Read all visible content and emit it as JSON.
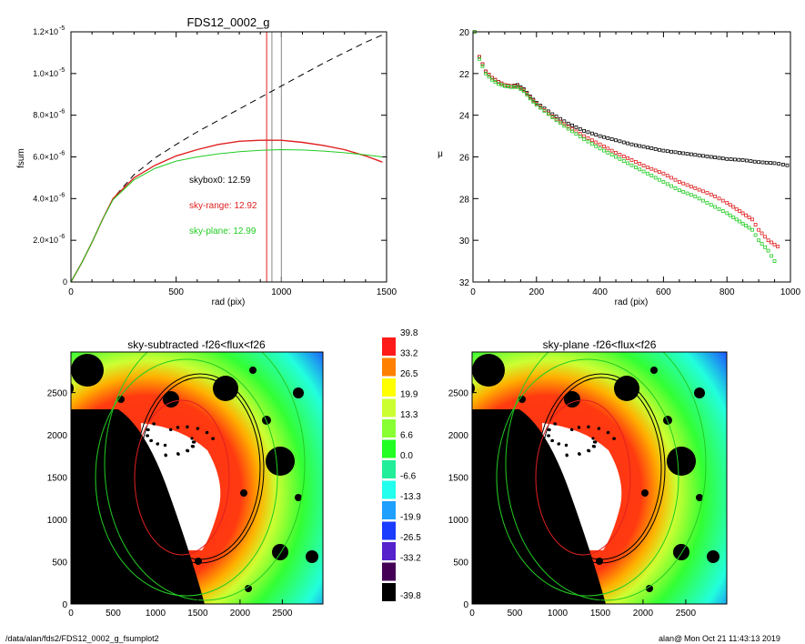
{
  "footer": {
    "path": "/data/alan/fds2/FDS12_0002_g_fsumplot2",
    "user": "alan@",
    "timestamp": "Mon Oct 21 11:43:13 2019"
  },
  "colors": {
    "red": "#e02020",
    "green": "#22cc22",
    "black": "#000000",
    "gray": "#888888"
  },
  "chart_data": [
    {
      "type": "line",
      "title": "FDS12_0002_g",
      "xlabel": "rad (pix)",
      "ylabel": "fsum",
      "xlim": [
        0,
        1500
      ],
      "ylim": [
        0,
        1.2e-05
      ],
      "xticks": [
        0,
        500,
        1000,
        1500
      ],
      "yticks": [
        0,
        2e-06,
        4e-06,
        6e-06,
        8e-06,
        1e-05,
        1.2e-05
      ],
      "ytick_labels": [
        {
          "mant": "0",
          "exp": ""
        },
        {
          "mant": "2.0×10",
          "exp": "-6"
        },
        {
          "mant": "4.0×10",
          "exp": "-6"
        },
        {
          "mant": "6.0×10",
          "exp": "-6"
        },
        {
          "mant": "8.0×10",
          "exp": "-6"
        },
        {
          "mant": "1.0×10",
          "exp": "-5"
        },
        {
          "mant": "1.2×10",
          "exp": "-5"
        }
      ],
      "annotations": [
        {
          "text": "skybox0: 12.59",
          "color": "#000000"
        },
        {
          "text": "sky-range: 12.92",
          "color": "#e02020"
        },
        {
          "text": "sky-plane: 12.99",
          "color": "#22cc22"
        }
      ],
      "vlines": [
        {
          "x": 930,
          "color": "#e02020"
        },
        {
          "x": 955,
          "color": "#888888"
        },
        {
          "x": 1000,
          "color": "#888888"
        }
      ],
      "series": [
        {
          "style": "dashed",
          "color": "#000000",
          "x": [
            0,
            50,
            100,
            150,
            200,
            300,
            400,
            500,
            600,
            700,
            800,
            900,
            1000,
            1100,
            1200,
            1300,
            1400,
            1480
          ],
          "y": [
            0,
            9e-07,
            1.9e-06,
            3e-06,
            4e-06,
            5.15e-06,
            5.95e-06,
            6.6e-06,
            7.2e-06,
            7.75e-06,
            8.3e-06,
            8.85e-06,
            9.4e-06,
            9.95e-06,
            1.05e-05,
            1.1e-05,
            1.15e-05,
            1.185e-05
          ]
        },
        {
          "style": "solid",
          "color": "#e02020",
          "x": [
            0,
            50,
            100,
            150,
            200,
            300,
            400,
            500,
            600,
            700,
            800,
            900,
            1000,
            1100,
            1200,
            1300,
            1400,
            1480
          ],
          "y": [
            0,
            9e-07,
            1.9e-06,
            3e-06,
            4e-06,
            5e-06,
            5.6e-06,
            6.05e-06,
            6.35e-06,
            6.6e-06,
            6.75e-06,
            6.8e-06,
            6.8e-06,
            6.7e-06,
            6.55e-06,
            6.35e-06,
            6.05e-06,
            5.75e-06
          ]
        },
        {
          "style": "solid",
          "color": "#22cc22",
          "x": [
            0,
            50,
            100,
            150,
            200,
            300,
            400,
            500,
            600,
            700,
            800,
            900,
            1000,
            1100,
            1200,
            1300,
            1400,
            1480
          ],
          "y": [
            0,
            9e-07,
            1.9e-06,
            3e-06,
            3.95e-06,
            4.9e-06,
            5.45e-06,
            5.8e-06,
            6e-06,
            6.15e-06,
            6.25e-06,
            6.32e-06,
            6.35e-06,
            6.33e-06,
            6.28e-06,
            6.2e-06,
            6.1e-06,
            6e-06
          ]
        }
      ]
    },
    {
      "type": "scatter",
      "title": "",
      "xlabel": "rad (pix)",
      "ylabel": "μ",
      "xlim": [
        0,
        1000
      ],
      "ylim": [
        32,
        20
      ],
      "xticks": [
        0,
        200,
        400,
        600,
        800,
        1000
      ],
      "yticks": [
        20,
        22,
        24,
        26,
        28,
        30,
        32
      ],
      "series": [
        {
          "color": "#000000",
          "x": [
            5,
            20,
            40,
            60,
            80,
            100,
            120,
            140,
            160,
            180,
            200,
            250,
            300,
            350,
            400,
            450,
            500,
            550,
            600,
            650,
            700,
            750,
            800,
            850,
            900,
            950,
            990
          ],
          "y": [
            20.0,
            21.2,
            21.9,
            22.2,
            22.4,
            22.55,
            22.6,
            22.55,
            22.75,
            23.1,
            23.4,
            23.95,
            24.4,
            24.75,
            25.0,
            25.2,
            25.4,
            25.55,
            25.7,
            25.8,
            25.9,
            26.0,
            26.1,
            26.15,
            26.25,
            26.3,
            26.4
          ]
        },
        {
          "color": "#e02020",
          "x": [
            5,
            20,
            40,
            60,
            80,
            100,
            120,
            140,
            160,
            180,
            200,
            250,
            300,
            350,
            400,
            450,
            500,
            550,
            600,
            650,
            700,
            750,
            800,
            820,
            850,
            880,
            900,
            930,
            960
          ],
          "y": [
            20.0,
            21.2,
            21.9,
            22.2,
            22.4,
            22.55,
            22.6,
            22.6,
            22.8,
            23.15,
            23.45,
            24.05,
            24.55,
            25.0,
            25.4,
            25.8,
            26.15,
            26.5,
            26.8,
            27.2,
            27.5,
            27.8,
            28.2,
            28.4,
            28.7,
            29.0,
            29.5,
            30.0,
            30.3
          ]
        },
        {
          "color": "#22cc22",
          "x": [
            5,
            20,
            40,
            60,
            80,
            100,
            120,
            140,
            160,
            180,
            200,
            250,
            300,
            350,
            400,
            450,
            500,
            550,
            600,
            650,
            700,
            750,
            800,
            820,
            850,
            880,
            900,
            930,
            950
          ],
          "y": [
            20.0,
            21.3,
            22.0,
            22.3,
            22.5,
            22.6,
            22.65,
            22.65,
            22.85,
            23.2,
            23.5,
            24.1,
            24.65,
            25.15,
            25.6,
            26.0,
            26.4,
            26.8,
            27.2,
            27.6,
            27.9,
            28.3,
            28.7,
            28.9,
            29.2,
            29.5,
            30.0,
            30.5,
            31.0
          ]
        }
      ]
    },
    {
      "type": "heatmap",
      "title": "sky-subtracted -f26<flux<f26",
      "xticks": [
        0,
        500,
        1000,
        1500,
        2000,
        2500
      ],
      "yticks": [
        0,
        500,
        1000,
        1500,
        2000,
        2500
      ],
      "xlim": [
        0,
        2980
      ],
      "ylim": [
        0,
        2980
      ]
    },
    {
      "type": "heatmap",
      "title": "sky-plane -f26<flux<f26",
      "xticks": [
        0,
        500,
        1000,
        1500,
        2000,
        2500
      ],
      "yticks": [
        0,
        500,
        1000,
        1500,
        2000,
        2500
      ],
      "xlim": [
        0,
        2980
      ],
      "ylim": [
        0,
        2980
      ]
    },
    {
      "type": "colorbar",
      "levels": [
        {
          "label": "39.8",
          "color": "#ff1a1a"
        },
        {
          "label": "33.2",
          "color": "#ff8000"
        },
        {
          "label": "26.5",
          "color": "#ffff00"
        },
        {
          "label": "19.9",
          "color": "#ccff33"
        },
        {
          "label": "13.3",
          "color": "#88ff33"
        },
        {
          "label": "6.6",
          "color": "#22ff22"
        },
        {
          "label": "0.0",
          "color": "#22ee99"
        },
        {
          "label": "-6.6",
          "color": "#22ffee"
        },
        {
          "label": "-13.3",
          "color": "#1ea0ff"
        },
        {
          "label": "-19.9",
          "color": "#1a3cff"
        },
        {
          "label": "-26.5",
          "color": "#5522cc"
        },
        {
          "label": "-33.2",
          "color": "#440055"
        },
        {
          "label": "-39.8",
          "color": "#000000"
        }
      ]
    }
  ]
}
